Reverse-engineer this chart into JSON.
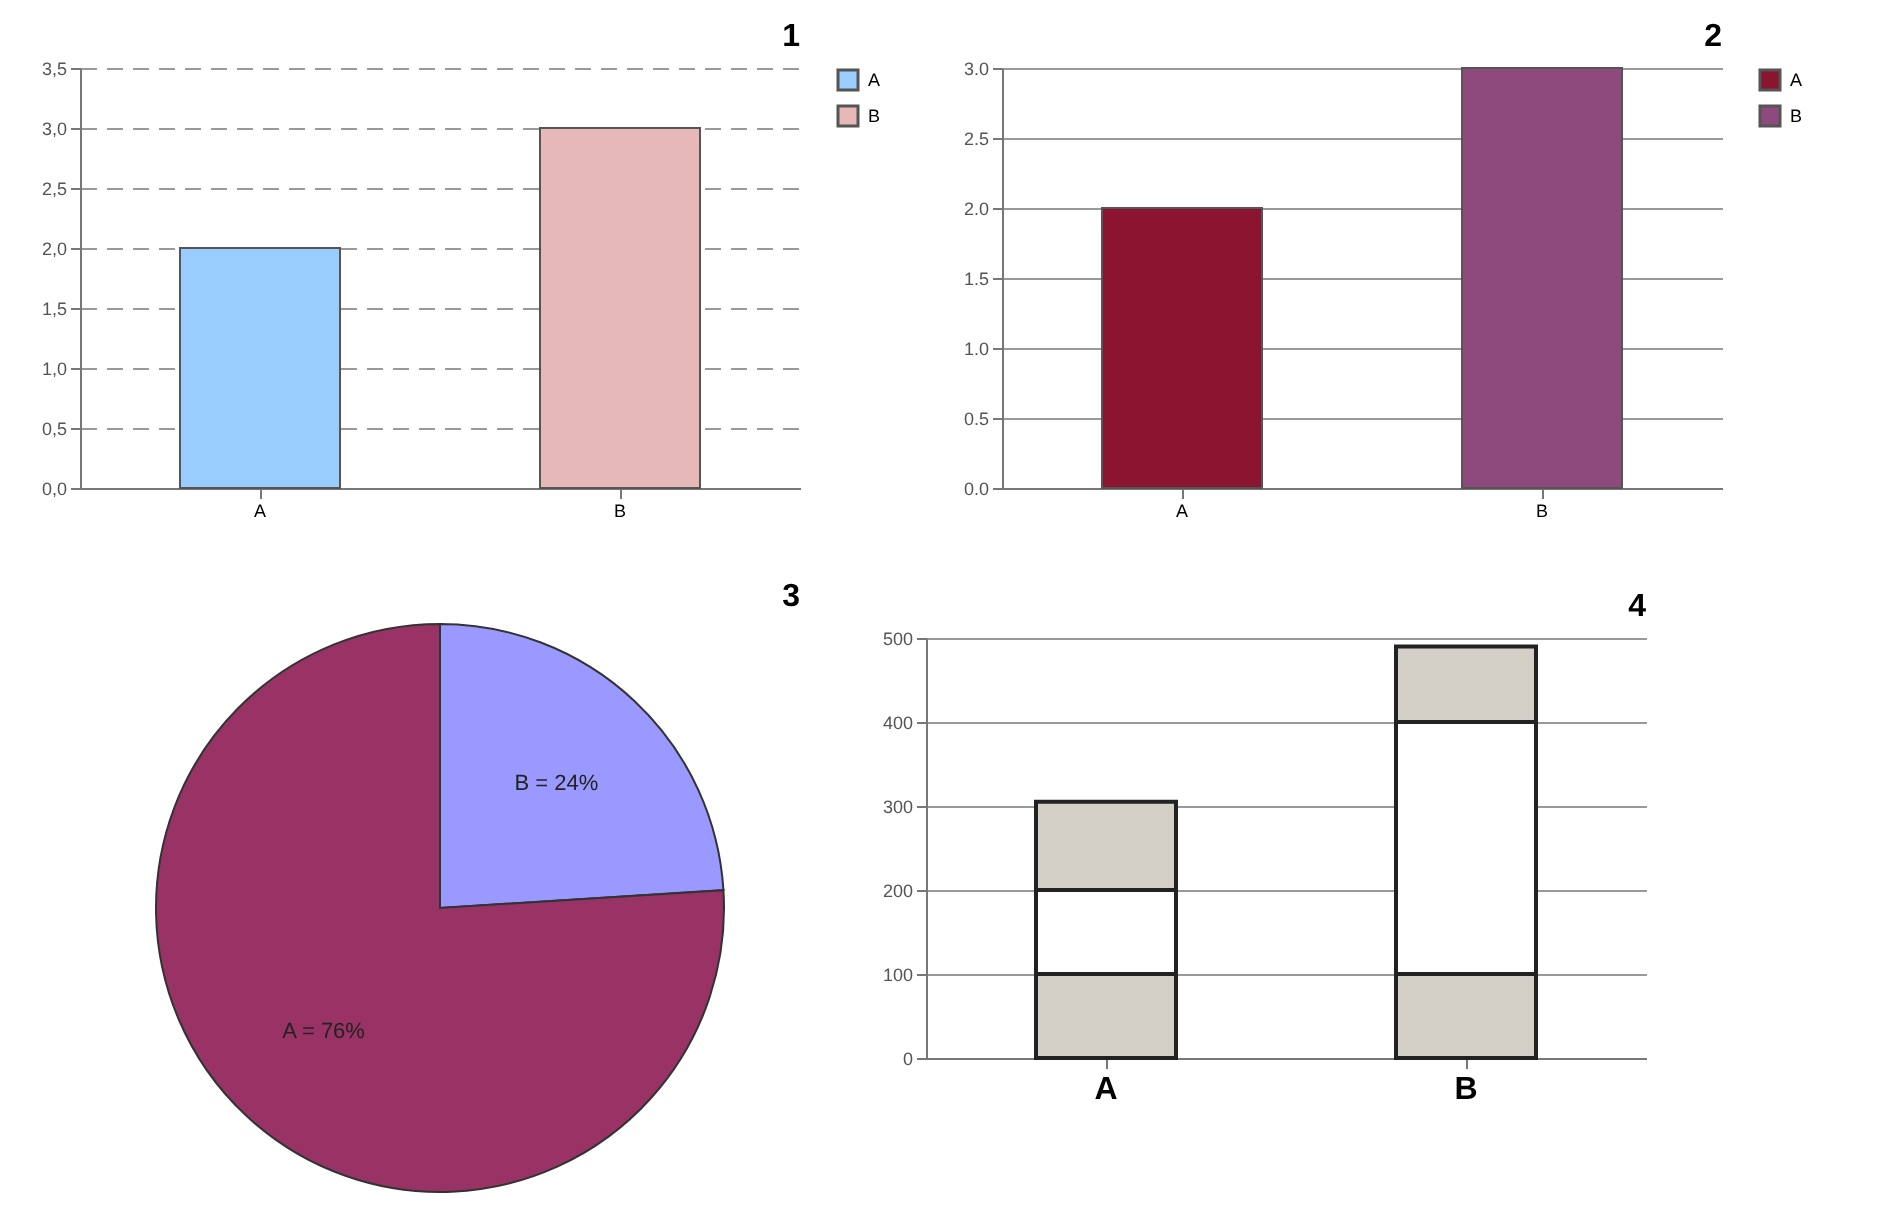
{
  "chart_data": [
    {
      "type": "bar",
      "annotations": [
        "1"
      ],
      "categories": [
        "A",
        "B"
      ],
      "series": [
        {
          "name": "A",
          "color": "#99ccff",
          "values": [
            2.0,
            null
          ]
        },
        {
          "name": "B",
          "color": "#e6b8b7",
          "values": [
            null,
            3.0
          ]
        }
      ],
      "ylim": [
        0,
        3.5
      ],
      "yticks": [
        {
          "value": 0,
          "label": "0,0"
        },
        {
          "value": 0.5,
          "label": "0,5"
        },
        {
          "value": 1,
          "label": "1,0"
        },
        {
          "value": 1.5,
          "label": "1,5"
        },
        {
          "value": 2,
          "label": "2,0"
        },
        {
          "value": 2.5,
          "label": "2,5"
        },
        {
          "value": 3,
          "label": "3,0"
        },
        {
          "value": 3.5,
          "label": "3,5"
        }
      ],
      "grid": "y",
      "legend": "right"
    },
    {
      "type": "bar",
      "annotations": [
        "2"
      ],
      "categories": [
        "A",
        "B"
      ],
      "series": [
        {
          "name": "A",
          "color": "#8b1530",
          "values": [
            2.0,
            null
          ]
        },
        {
          "name": "B",
          "color": "#8e4a7c",
          "values": [
            null,
            3.0
          ]
        }
      ],
      "ylim": [
        0,
        3.0
      ],
      "yticks": [
        {
          "value": 0,
          "label": "0.0"
        },
        {
          "value": 0.5,
          "label": "0.5"
        },
        {
          "value": 1,
          "label": "1.0"
        },
        {
          "value": 1.5,
          "label": "1.5"
        },
        {
          "value": 2,
          "label": "2.0"
        },
        {
          "value": 2.5,
          "label": "2.5"
        },
        {
          "value": 3,
          "label": "3.0"
        }
      ],
      "grid": "y",
      "legend": "right"
    },
    {
      "type": "pie",
      "annotations": [
        "3"
      ],
      "categories": [
        "B = 24%",
        "A = 76%"
      ],
      "values": [
        24,
        76
      ],
      "colors": [
        "#9999ff",
        "#993366"
      ]
    },
    {
      "type": "bar",
      "annotations": [
        "4"
      ],
      "stacked": true,
      "categories": [
        "A",
        "B"
      ],
      "series": [
        {
          "color": "#d4d0c8",
          "values": [
            100,
            100
          ]
        },
        {
          "color": "#ffffff",
          "values": [
            100,
            300
          ]
        },
        {
          "color": "#d4d0c8",
          "values": [
            105,
            90
          ]
        }
      ],
      "ylim": [
        0,
        500
      ],
      "yticks": [
        0,
        100,
        200,
        300,
        400,
        500
      ],
      "grid": "y"
    }
  ]
}
